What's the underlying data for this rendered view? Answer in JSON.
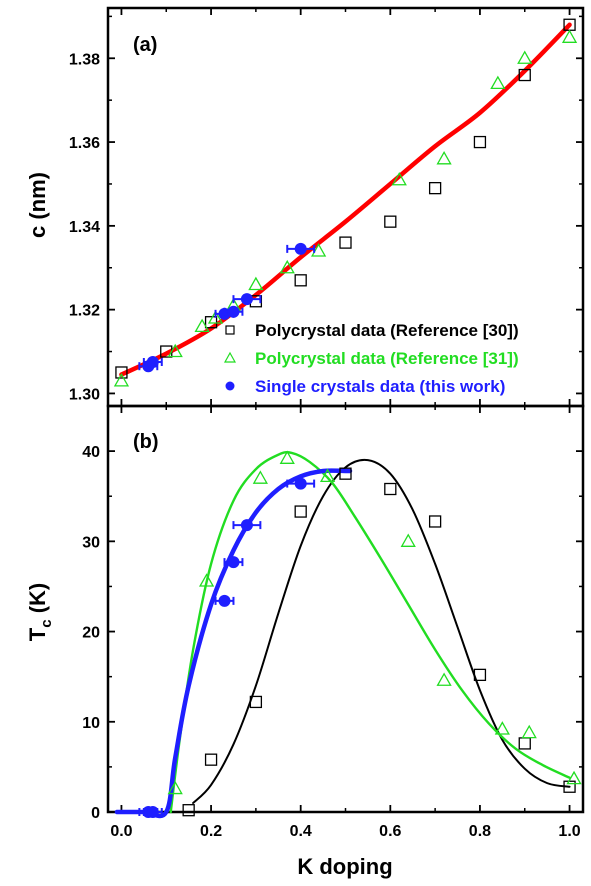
{
  "chart_data": [
    {
      "type": "scatter",
      "panel_label": "(a)",
      "xlabel": "",
      "ylabel": "c (nm)",
      "xlim": [
        -0.03,
        1.03
      ],
      "ylim": [
        1.297,
        1.392
      ],
      "y_ticks": [
        1.3,
        1.32,
        1.34,
        1.36,
        1.38
      ],
      "y_tick_labels": [
        "1.30",
        "1.32",
        "1.34",
        "1.36",
        "1.38"
      ],
      "legend_placement": "bottom-right",
      "series": [
        {
          "name": "Polycrystal data (Reference [30])",
          "marker": "open-square",
          "color": "#000000",
          "x": [
            0.0,
            0.1,
            0.2,
            0.3,
            0.4,
            0.5,
            0.6,
            0.7,
            0.8,
            0.9,
            1.0
          ],
          "y": [
            1.305,
            1.31,
            1.317,
            1.322,
            1.327,
            1.336,
            1.341,
            1.349,
            1.36,
            1.376,
            1.388
          ]
        },
        {
          "name": "Polycrystal data (Reference [31])",
          "marker": "open-triangle",
          "color": "#22dd22",
          "x": [
            0.0,
            0.12,
            0.18,
            0.21,
            0.25,
            0.3,
            0.37,
            0.44,
            0.62,
            0.72,
            0.84,
            0.9,
            1.0
          ],
          "y": [
            1.303,
            1.31,
            1.316,
            1.318,
            1.321,
            1.326,
            1.33,
            1.334,
            1.351,
            1.356,
            1.374,
            1.38,
            1.385
          ]
        },
        {
          "name": "Single crystals data (this work)",
          "marker": "filled-circle",
          "color": "#1f1fff",
          "x": [
            0.06,
            0.07,
            0.23,
            0.25,
            0.28,
            0.4
          ],
          "y": [
            1.3065,
            1.3075,
            1.319,
            1.3195,
            1.3225,
            1.3345
          ],
          "xerr": [
            0.02,
            0.02,
            0.02,
            0.02,
            0.03,
            0.03
          ]
        }
      ],
      "fit_curves": [
        {
          "color": "#ff0000",
          "x": [
            0.0,
            0.1,
            0.2,
            0.3,
            0.4,
            0.5,
            0.6,
            0.7,
            0.8,
            0.9,
            1.0
          ],
          "y": [
            1.3045,
            1.3095,
            1.3155,
            1.3235,
            1.3325,
            1.341,
            1.35,
            1.359,
            1.367,
            1.377,
            1.388
          ]
        }
      ]
    },
    {
      "type": "scatter",
      "panel_label": "(b)",
      "xlabel": "K doping",
      "ylabel": "T",
      "ylabel_subscript": "c",
      "ylabel_unit": " (K)",
      "xlim": [
        -0.03,
        1.03
      ],
      "ylim": [
        0,
        45
      ],
      "x_ticks": [
        0.0,
        0.2,
        0.4,
        0.6,
        0.8,
        1.0
      ],
      "x_tick_labels": [
        "0.0",
        "0.2",
        "0.4",
        "0.6",
        "0.8",
        "1.0"
      ],
      "y_ticks": [
        0,
        10,
        20,
        30,
        40
      ],
      "y_tick_labels": [
        "0",
        "10",
        "20",
        "30",
        "40"
      ],
      "series": [
        {
          "name": "Polycrystal data (Reference [30])",
          "marker": "open-square",
          "color": "#000000",
          "x": [
            0.15,
            0.2,
            0.3,
            0.4,
            0.5,
            0.6,
            0.7,
            0.8,
            0.9,
            1.0
          ],
          "y": [
            0.2,
            5.8,
            12.2,
            33.3,
            37.5,
            35.8,
            32.2,
            15.2,
            7.6,
            2.8
          ]
        },
        {
          "name": "Polycrystal data (Reference [31])",
          "marker": "open-triangle",
          "color": "#22dd22",
          "x": [
            0.12,
            0.19,
            0.31,
            0.37,
            0.46,
            0.64,
            0.72,
            0.85,
            0.91,
            1.01
          ],
          "y": [
            2.6,
            25.6,
            37.0,
            39.2,
            37.2,
            30.0,
            14.6,
            9.2,
            8.8,
            3.7
          ]
        },
        {
          "name": "Single crystals data (this work)",
          "marker": "filled-circle",
          "color": "#1f1fff",
          "x": [
            0.06,
            0.07,
            0.23,
            0.25,
            0.28,
            0.4
          ],
          "y": [
            0.0,
            0.0,
            23.4,
            27.7,
            31.8,
            36.4
          ],
          "xerr": [
            0.02,
            0.02,
            0.02,
            0.02,
            0.03,
            0.03
          ]
        }
      ],
      "fit_curves": [
        {
          "color": "#000000",
          "x": [
            0.16,
            0.2,
            0.25,
            0.3,
            0.35,
            0.4,
            0.45,
            0.5,
            0.55,
            0.6,
            0.65,
            0.7,
            0.75,
            0.8,
            0.85,
            0.9,
            0.95,
            1.0
          ],
          "y": [
            1.0,
            3.0,
            7.5,
            14.0,
            22.0,
            29.5,
            35.0,
            38.2,
            39.0,
            37.5,
            33.5,
            27.5,
            20.5,
            13.5,
            8.0,
            4.8,
            3.2,
            2.8
          ]
        },
        {
          "color": "#22dd22",
          "x": [
            0.11,
            0.13,
            0.16,
            0.2,
            0.25,
            0.3,
            0.35,
            0.38,
            0.42,
            0.47,
            0.52,
            0.58,
            0.64,
            0.7,
            0.76,
            0.82,
            0.88,
            0.94,
            1.0
          ],
          "y": [
            0.0,
            8.0,
            18.0,
            27.5,
            34.5,
            38.0,
            39.6,
            39.8,
            38.8,
            36.5,
            32.8,
            28.0,
            23.0,
            18.0,
            13.5,
            9.8,
            7.0,
            5.2,
            3.8
          ]
        },
        {
          "color": "#1f1fff",
          "x": [
            -0.01,
            0.05,
            0.1,
            0.12,
            0.15,
            0.2,
            0.25,
            0.3,
            0.35,
            0.4,
            0.45,
            0.5,
            0.51
          ],
          "y": [
            0.0,
            0.0,
            0.0,
            6.0,
            14.0,
            23.0,
            29.0,
            33.2,
            35.8,
            37.2,
            37.8,
            37.8,
            37.8
          ]
        }
      ]
    }
  ]
}
